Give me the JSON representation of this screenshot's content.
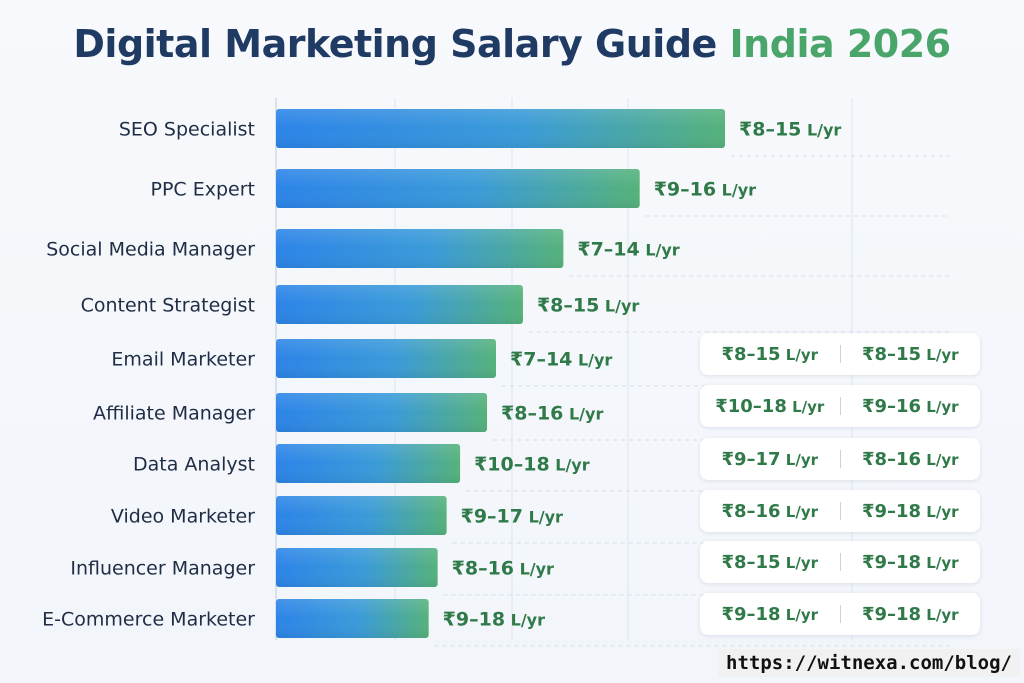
{
  "header": {
    "title_main": "Digital Marketing Salary Guide",
    "title_accent": "India 2026"
  },
  "colors": {
    "title": "#1f3a63",
    "accent": "#4aa56a",
    "bar_start": "#2e86e6",
    "bar_end": "#52b07a",
    "label_value": "#2f7a48"
  },
  "chart_data": {
    "type": "bar",
    "orientation": "horizontal",
    "title": "Digital Marketing Salary Guide India 2026",
    "categories": [
      "SEO Specialist",
      "PPC Expert",
      "Social Media Manager",
      "Content Strategist",
      "Email Marketer",
      "Affiliate Manager",
      "Data Analyst",
      "Video Marketer",
      "Influencer Manager",
      "E-Commerce Marketer"
    ],
    "values": [
      100,
      81,
      64,
      55,
      49,
      47,
      41,
      38,
      36,
      34
    ],
    "xlim": [
      0,
      100
    ],
    "grid": true,
    "labels": [
      "₹8–15 L/yr",
      "₹9–16 L/yr",
      "₹7–14 L/yr",
      "₹8–15 L/yr",
      "₹7–14 L/yr",
      "₹8–16 L/yr",
      "₹10–18 L/yr",
      "₹9–17 L/yr",
      "₹8–16 L/yr",
      "₹9–18 L/yr"
    ]
  },
  "side_table": [
    [
      "₹8–15 L/yr",
      "₹8–15 L/yr"
    ],
    [
      "₹10–18 L/yr",
      "₹9–16 L/yr"
    ],
    [
      "₹9–17 L/yr",
      "₹8–16 L/yr"
    ],
    [
      "₹8–16 L/yr",
      "₹9–18 L/yr"
    ],
    [
      "₹8–15 L/yr",
      "₹9–18 L/yr"
    ],
    [
      "₹9–18 L/yr",
      "₹9–18 L/yr"
    ]
  ],
  "watermark": "https://witnexa.com/blog/"
}
